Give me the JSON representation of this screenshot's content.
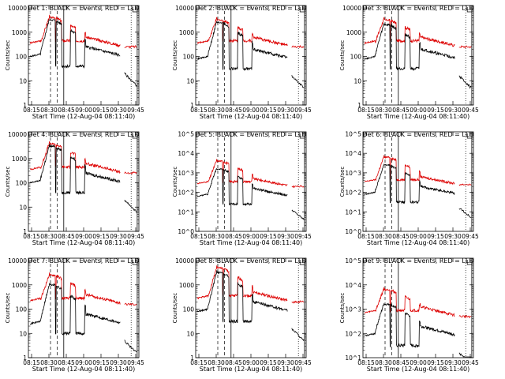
{
  "figure": {
    "xlabel": "Start Time (12-Aug-04 08:11:40)",
    "ylabel": "Counts/sec",
    "x_tick_labels": [
      "08:15",
      "08:30",
      "08:45",
      "09:00",
      "09:15",
      "09:30",
      "09:45"
    ],
    "colors": {
      "events": "#000000",
      "lld": "#dd0000",
      "background": "#ffffff"
    }
  },
  "chart_data": [
    {
      "type": "line",
      "title": "Det 1: BLACK = Events, RED = LLD",
      "ytick_style": "plain",
      "yticks": [
        "1",
        "10",
        "100",
        "1000",
        "10000"
      ],
      "ylim_log10": [
        0,
        4.1
      ],
      "events_level": [
        3.5,
        2.1
      ],
      "lld_level": [
        3.6,
        2.5
      ]
    },
    {
      "type": "line",
      "title": "Det 2: BLACK = Events, RED = LLD",
      "ytick_style": "plain",
      "yticks": [
        "1",
        "10",
        "100",
        "1000",
        "10000"
      ],
      "ylim_log10": [
        0,
        4.1
      ],
      "events_level": [
        3.4,
        2.0
      ],
      "lld_level": [
        3.5,
        2.5
      ]
    },
    {
      "type": "line",
      "title": "Det 3: BLACK = Events, RED = LLD",
      "ytick_style": "plain",
      "yticks": [
        "1",
        "10",
        "100",
        "1000",
        "10000"
      ],
      "ylim_log10": [
        0,
        4.1
      ],
      "events_level": [
        3.3,
        2.0
      ],
      "lld_level": [
        3.5,
        2.5
      ]
    },
    {
      "type": "line",
      "title": "Det 4: BLACK = Events, RED = LLD",
      "ytick_style": "plain",
      "yticks": [
        "1",
        "10",
        "100",
        "1000",
        "10000"
      ],
      "ylim_log10": [
        0,
        4.1
      ],
      "events_level": [
        3.5,
        2.1
      ],
      "lld_level": [
        3.6,
        2.5
      ]
    },
    {
      "type": "line",
      "title": "Det 5: BLACK = Events, RED = LLD",
      "ytick_style": "exp",
      "yticks": [
        "10^0",
        "10^1",
        "10^2",
        "10^3",
        "10^4",
        "10^5"
      ],
      "ylim_log10": [
        0,
        5.1
      ],
      "events_level": [
        3.2,
        1.9
      ],
      "lld_level": [
        3.6,
        2.4
      ]
    },
    {
      "type": "line",
      "title": "Det 6: BLACK = Events, RED = LLD",
      "ytick_style": "exp",
      "yticks": [
        "10^0",
        "10^1",
        "10^2",
        "10^3",
        "10^4",
        "10^5"
      ],
      "ylim_log10": [
        0,
        5.1
      ],
      "events_level": [
        3.4,
        2.0
      ],
      "lld_level": [
        3.8,
        2.5
      ]
    },
    {
      "type": "line",
      "title": "Det 7: BLACK = Events, RED = LLD",
      "ytick_style": "plain",
      "yticks": [
        "1",
        "10",
        "100",
        "1000",
        "10000"
      ],
      "ylim_log10": [
        0,
        4.1
      ],
      "events_level": [
        3.0,
        1.5
      ],
      "lld_level": [
        3.4,
        2.3
      ]
    },
    {
      "type": "line",
      "title": "Det 8: BLACK = Events, RED = LLD",
      "ytick_style": "plain",
      "yticks": [
        "1",
        "10",
        "100",
        "1000",
        "10000"
      ],
      "ylim_log10": [
        0,
        4.1
      ],
      "events_level": [
        3.5,
        2.0
      ],
      "lld_level": [
        3.7,
        2.4
      ]
    },
    {
      "type": "line",
      "title": "Det 9: BLACK = Events, RED = LLD",
      "ytick_style": "exp",
      "yticks": [
        "10^1",
        "10^2",
        "10^3",
        "10^4",
        "10^5"
      ],
      "ylim_log10": [
        1,
        5.1
      ],
      "events_level": [
        3.2,
        2.0
      ],
      "lld_level": [
        3.8,
        2.8
      ]
    }
  ]
}
